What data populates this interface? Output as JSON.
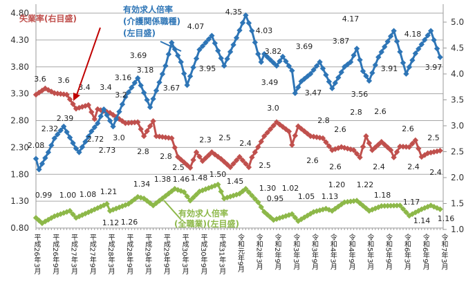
{
  "chart_data": {
    "type": "line",
    "left_axis": {
      "ticks": [
        "0.80",
        "1.30",
        "1.80",
        "2.30",
        "2.80",
        "3.30",
        "3.80",
        "4.30",
        "4.80"
      ],
      "range": [
        0.8,
        4.8
      ]
    },
    "right_axis": {
      "ticks": [
        "1.0",
        "1.5",
        "2.0",
        "2.5",
        "3.0",
        "3.5",
        "4.0",
        "4.5",
        "5.0"
      ],
      "range": [
        1.0,
        5.0
      ]
    },
    "x_unit": "months since 平成26年3月",
    "x_tick_labels": [
      "平成26年3月",
      "平成26年9月",
      "平成27年3月",
      "平成27年9月",
      "平成28年3月",
      "平成28年9月",
      "平成29年3月",
      "平成29年9月",
      "平成30年3月",
      "平成30年9月",
      "平成31年3月",
      "令和元年9月",
      "令和2年3月",
      "令和2年9月",
      "令和3年3月",
      "令和3年9月",
      "令和4年3月",
      "令和4年9月",
      "令和5年3月",
      "令和5年9月",
      "令和6年3月",
      "令和6年9月",
      "令和7年3月"
    ],
    "grid": true,
    "series": [
      {
        "name": "有効求人倍率(介護関係職種)(左目盛)",
        "legend": [
          "有効求人倍率",
          "(介護関係職種)",
          "(左目盛)"
        ],
        "axis": "left",
        "color": "#2e75b6",
        "points": [
          [
            0,
            2.09
          ],
          [
            1,
            1.89
          ],
          [
            4,
            2.21
          ],
          [
            6,
            2.47
          ],
          [
            9,
            2.69
          ],
          [
            13,
            2.28
          ],
          [
            14,
            2.21
          ],
          [
            18,
            2.6
          ],
          [
            20,
            2.75
          ],
          [
            22,
            3.01
          ],
          [
            25,
            2.69
          ],
          [
            29,
            3.24
          ],
          [
            33,
            3.59
          ],
          [
            37,
            3.05
          ],
          [
            42,
            3.82
          ],
          [
            44,
            4.25
          ],
          [
            47,
            3.89
          ],
          [
            49,
            3.46
          ],
          [
            53,
            4.12
          ],
          [
            57,
            4.38
          ],
          [
            61,
            3.82
          ],
          [
            65,
            4.34
          ],
          [
            68,
            4.76
          ],
          [
            70,
            4.47
          ],
          [
            72,
            4.04
          ],
          [
            73,
            3.89
          ],
          [
            74,
            4.04
          ],
          [
            78,
            3.82
          ],
          [
            80,
            3.99
          ],
          [
            83,
            3.73
          ],
          [
            84,
            3.31
          ],
          [
            86,
            3.53
          ],
          [
            89,
            3.67
          ],
          [
            92,
            3.89
          ],
          [
            94,
            3.65
          ],
          [
            96,
            3.4
          ],
          [
            100,
            3.8
          ],
          [
            102,
            3.89
          ],
          [
            104,
            4.14
          ],
          [
            106,
            3.72
          ],
          [
            108,
            3.54
          ],
          [
            111,
            3.98
          ],
          [
            114,
            4.27
          ],
          [
            116,
            4.47
          ],
          [
            118,
            4.08
          ],
          [
            120,
            3.67
          ],
          [
            123,
            4.05
          ],
          [
            128,
            4.47
          ],
          [
            129,
            4.3
          ],
          [
            131,
            3.98
          ]
        ],
        "labels": [
          "2.08",
          "2.32",
          "2.39",
          "2.72",
          "2.73",
          "3.16",
          "3.18",
          "3.69",
          "3.67",
          "4.07",
          "3.95",
          "4.35",
          "4.03",
          "3.82",
          "3.49",
          "3.69",
          "3.47",
          "3.87",
          "3.56",
          "4.17",
          "3.91",
          "4.18",
          "3.97"
        ]
      },
      {
        "name": "失業率(右目盛)",
        "legend": [
          "失業率(右目盛)"
        ],
        "axis": "right",
        "color": "#c0504d",
        "points": [
          [
            0,
            3.6
          ],
          [
            3,
            3.72
          ],
          [
            6,
            3.63
          ],
          [
            10,
            3.6
          ],
          [
            13,
            3.33
          ],
          [
            17,
            3.4
          ],
          [
            19,
            3.13
          ],
          [
            20,
            3.32
          ],
          [
            24,
            3.25
          ],
          [
            29,
            3.05
          ],
          [
            33,
            3.07
          ],
          [
            35,
            2.8
          ],
          [
            38,
            3.09
          ],
          [
            39,
            2.8
          ],
          [
            44,
            2.76
          ],
          [
            46,
            2.4
          ],
          [
            50,
            2.19
          ],
          [
            52,
            2.49
          ],
          [
            54,
            2.32
          ],
          [
            57,
            2.49
          ],
          [
            60,
            2.36
          ],
          [
            63,
            2.2
          ],
          [
            66,
            2.4
          ],
          [
            69,
            2.2
          ],
          [
            70,
            2.39
          ],
          [
            72,
            2.59
          ],
          [
            74,
            2.8
          ],
          [
            78,
            3.07
          ],
          [
            82,
            2.89
          ],
          [
            83,
            2.63
          ],
          [
            85,
            2.99
          ],
          [
            89,
            2.8
          ],
          [
            93,
            2.76
          ],
          [
            96,
            2.53
          ],
          [
            99,
            2.59
          ],
          [
            103,
            2.53
          ],
          [
            105,
            2.39
          ],
          [
            107,
            2.8
          ],
          [
            109,
            2.53
          ],
          [
            112,
            2.69
          ],
          [
            115,
            2.53
          ],
          [
            116,
            2.39
          ],
          [
            118,
            2.6
          ],
          [
            121,
            2.59
          ],
          [
            123,
            2.72
          ],
          [
            125,
            2.4
          ],
          [
            127,
            2.47
          ],
          [
            131,
            2.52
          ]
        ],
        "labels": [
          "3.6",
          "3.6",
          "3.4",
          "3.4",
          "3.0",
          "3.2",
          "2.8",
          "2.8",
          "2.5",
          "2.3",
          "2.5",
          "2.4",
          "2.5",
          "3.0",
          "2.6",
          "2.8",
          "2.6",
          "2.6",
          "2.8",
          "2.6",
          "2.4",
          "2.4",
          "2.6",
          "2.5",
          "2.4"
        ]
      },
      {
        "name": "有効求人倍率(全職業)(左目盛)",
        "legend": [
          "有効求人倍率",
          "(全職業)(左目盛)"
        ],
        "axis": "left",
        "color": "#8db849",
        "points": [
          [
            0,
            0.99
          ],
          [
            2,
            0.89
          ],
          [
            6,
            1.02
          ],
          [
            11,
            1.12
          ],
          [
            13,
            0.99
          ],
          [
            18,
            1.12
          ],
          [
            23,
            1.25
          ],
          [
            24,
            1.12
          ],
          [
            30,
            1.25
          ],
          [
            33,
            1.38
          ],
          [
            35,
            1.35
          ],
          [
            38,
            1.22
          ],
          [
            45,
            1.53
          ],
          [
            48,
            1.47
          ],
          [
            50,
            1.31
          ],
          [
            53,
            1.48
          ],
          [
            59,
            1.61
          ],
          [
            61,
            1.35
          ],
          [
            66,
            1.44
          ],
          [
            68,
            1.53
          ],
          [
            72,
            1.28
          ],
          [
            74,
            1.1
          ],
          [
            77,
            0.95
          ],
          [
            83,
            1.06
          ],
          [
            85,
            0.93
          ],
          [
            90,
            1.1
          ],
          [
            94,
            1.16
          ],
          [
            96,
            1.12
          ],
          [
            100,
            1.28
          ],
          [
            104,
            1.31
          ],
          [
            108,
            1.12
          ],
          [
            112,
            1.21
          ],
          [
            118,
            1.22
          ],
          [
            121,
            1.03
          ],
          [
            125,
            1.15
          ],
          [
            128,
            1.22
          ],
          [
            131,
            1.15
          ]
        ],
        "labels": [
          "0.99",
          "1.00",
          "1.08",
          "1.21",
          "1.12",
          "1.26",
          "1.34",
          "1.38",
          "1.46",
          "1.48",
          "1.50",
          "1.45",
          "1.30",
          "0.95",
          "1.02",
          "1.05",
          "1.13",
          "1.20",
          "1.22",
          "1.18",
          "1.17",
          "1.14",
          "1.16"
        ]
      }
    ]
  }
}
